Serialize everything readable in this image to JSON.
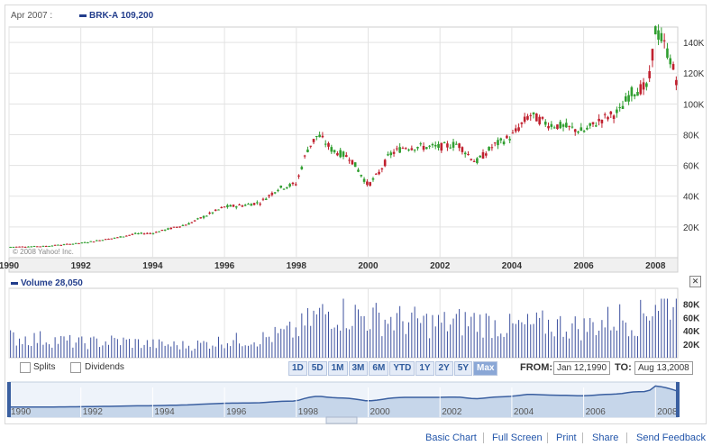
{
  "header": {
    "date_label": "Apr 2007 :",
    "symbol": "BRK-A",
    "price": "109,200"
  },
  "volume_header": {
    "label": "Volume",
    "value": "28,050"
  },
  "watermark": "© 2008 Yahoo! Inc.",
  "controls": {
    "splits_label": "Splits",
    "dividends_label": "Dividends",
    "ranges": [
      "1D",
      "5D",
      "1M",
      "3M",
      "6M",
      "YTD",
      "1Y",
      "2Y",
      "5Y",
      "Max"
    ],
    "active_range": "Max",
    "from_label": "FROM:",
    "from_value": "Jan 12,1990",
    "to_label": "TO:",
    "to_value": "Aug 13,2008"
  },
  "footer": {
    "links": [
      "Basic Chart",
      "Full Screen",
      "Print",
      "Share",
      "Send Feedback"
    ]
  },
  "colors": {
    "up": "#2f9e2f",
    "down": "#c0202e",
    "volume": "#3b4f9e",
    "grid": "#e3e3e3",
    "nav_fill": "#c6d6ea",
    "nav_line": "#3a5fa0"
  },
  "chart_data": [
    {
      "type": "line",
      "series_style": "candlestick",
      "x_ticks": [
        "1990",
        "1992",
        "1994",
        "1996",
        "1998",
        "2000",
        "2002",
        "2004",
        "2006",
        "2008"
      ],
      "y_ticks": [
        "20K",
        "40K",
        "60K",
        "80K",
        "100K",
        "120K",
        "140K"
      ],
      "ylim": [
        0,
        150000
      ],
      "xlim": [
        1990.0,
        2008.62
      ],
      "series": [
        {
          "name": "BRK-A",
          "x": [
            1990.0,
            1991.0,
            1992.0,
            1993.0,
            1993.5,
            1994.0,
            1995.0,
            1996.0,
            1996.5,
            1997.0,
            1997.5,
            1998.0,
            1998.3,
            1998.6,
            1999.0,
            1999.5,
            2000.0,
            2000.3,
            2000.6,
            2001.0,
            2002.0,
            2002.5,
            2003.0,
            2003.5,
            2004.0,
            2004.5,
            2005.0,
            2005.5,
            2006.0,
            2006.5,
            2007.0,
            2007.3,
            2007.6,
            2007.8,
            2008.0,
            2008.2,
            2008.4,
            2008.62
          ],
          "values": [
            7000,
            7500,
            9500,
            13000,
            15500,
            16000,
            22000,
            33000,
            34000,
            36000,
            45000,
            48000,
            70000,
            80000,
            70000,
            65000,
            47000,
            55000,
            67000,
            72000,
            72000,
            74000,
            62000,
            73000,
            79000,
            93000,
            87000,
            85000,
            82000,
            90000,
            95000,
            107000,
            110000,
            111000,
            148000,
            141000,
            130000,
            113000
          ]
        }
      ]
    },
    {
      "type": "bar",
      "x_ticks": [],
      "y_ticks": [
        "20K",
        "40K",
        "60K",
        "80K"
      ],
      "ylim": [
        0,
        90000
      ],
      "series": [
        {
          "name": "Volume",
          "x": [
            1990.0,
            1991.0,
            1992.0,
            1993.0,
            1994.0,
            1995.0,
            1996.0,
            1997.0,
            1998.0,
            1998.5,
            1999.0,
            2000.0,
            2001.0,
            2002.0,
            2003.0,
            2004.0,
            2005.0,
            2006.0,
            2007.0,
            2007.5,
            2008.0,
            2008.62
          ],
          "values": [
            30000,
            28000,
            22000,
            25000,
            20000,
            18000,
            25000,
            28000,
            40000,
            60000,
            70000,
            60000,
            55000,
            50000,
            55000,
            45000,
            50000,
            45000,
            60000,
            55000,
            85000,
            88000
          ]
        }
      ]
    }
  ]
}
